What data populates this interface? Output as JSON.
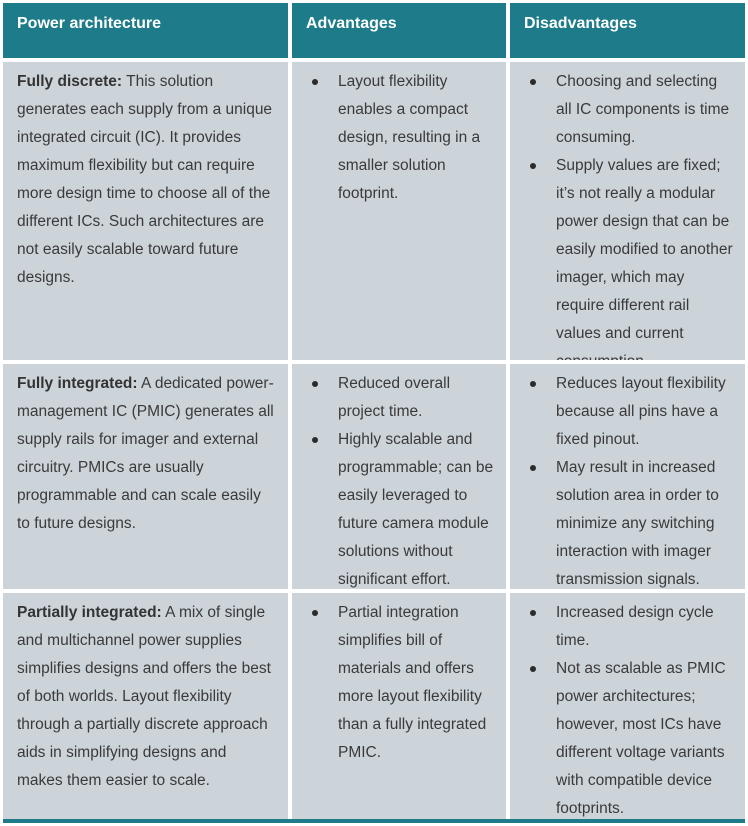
{
  "colors": {
    "header_bg": "#1e7b8a",
    "header_text": "#ffffff",
    "cell_bg": "#ccd3d9",
    "body_text": "#3a3a3a",
    "bottom_border": "#1e7b8a"
  },
  "table": {
    "headers": [
      "Power architecture",
      "Advantages",
      "Disadvantages"
    ],
    "rows": [
      {
        "architecture_lead": "Fully discrete:",
        "architecture_text": " This solution generates each supply from a unique integrated circuit (IC). It provides maximum flexibility but can require more design time to choose all of the different ICs. Such architectures are not easily scalable toward future designs.",
        "advantages": [
          "Layout flexibility enables a compact design, resulting in a smaller solution footprint."
        ],
        "disadvantages": [
          "Choosing and selecting all IC components is time consuming.",
          "Supply values are fixed; it’s not really a modular power design that can be easily modified to another imager, which may require different rail values and current consumption."
        ]
      },
      {
        "architecture_lead": "Fully integrated:",
        "architecture_text": " A dedicated power-management IC (PMIC) generates all supply rails for imager and external circuitry. PMICs are usually programmable and can scale easily to future designs.",
        "advantages": [
          "Reduced overall project time.",
          "Highly scalable and programmable; can be easily leveraged to future camera module solutions without significant effort."
        ],
        "disadvantages": [
          "Reduces layout flexibility because all pins have a fixed pinout.",
          "May result in increased solution area in order to minimize any switching interaction with imager transmission signals."
        ]
      },
      {
        "architecture_lead": "Partially integrated:",
        "architecture_text": " A mix of single and multichannel power supplies simplifies designs and offers the best of both worlds. Layout flexibility through a partially discrete approach aids in simplifying designs and makes them easier to scale.",
        "advantages": [
          "Partial integration simplifies bill of materials and offers more layout flexibility than a fully integrated PMIC."
        ],
        "disadvantages": [
          "Increased design cycle time.",
          "Not as scalable as PMIC power architectures; however, most ICs have different voltage variants with compatible device footprints."
        ]
      }
    ]
  }
}
